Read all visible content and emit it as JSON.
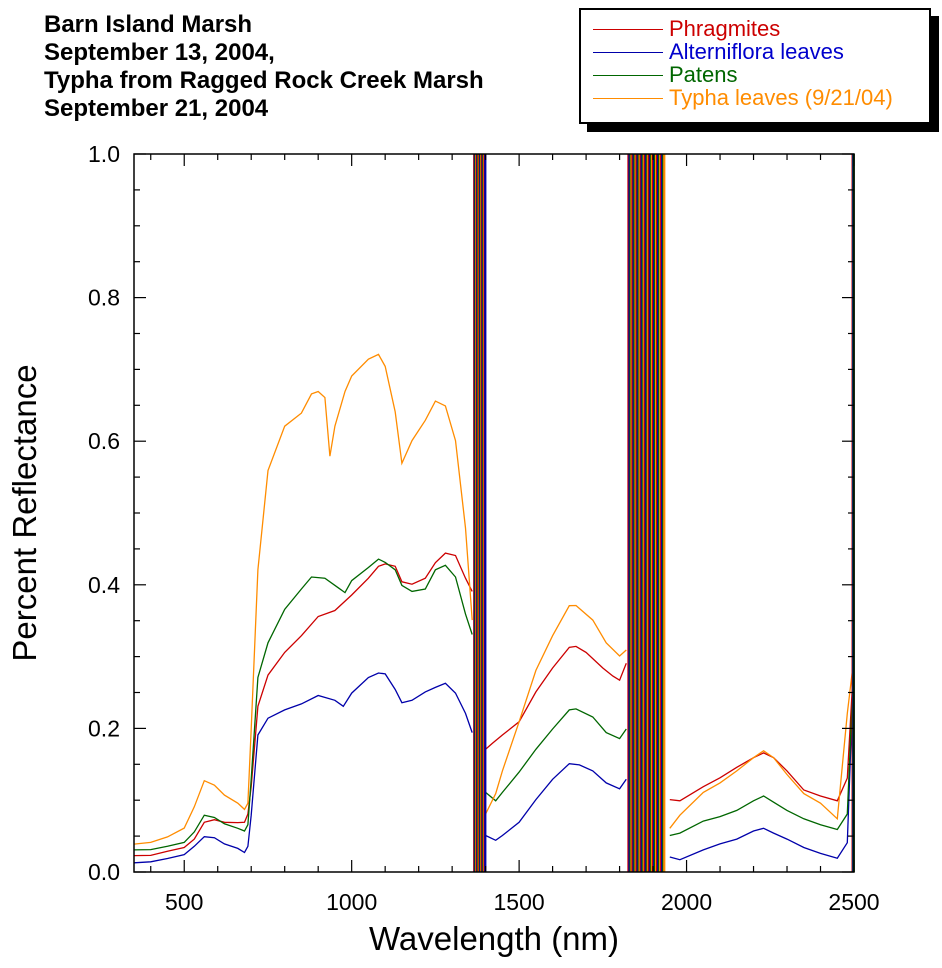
{
  "title": {
    "line1": "Barn Island Marsh",
    "line2": "September 13, 2004,",
    "line3": "Typha from Ragged Rock Creek Marsh",
    "line4": "September 21, 2004"
  },
  "colors": {
    "phragmites": "#cc0000",
    "alterniflora": "#0000aa",
    "patens": "#006600",
    "typha": "#ff8c00"
  },
  "chart_data": {
    "type": "line",
    "title": "Barn Island Marsh September 13, 2004, Typha from Ragged Rock Creek Marsh September 21, 2004",
    "xlabel": "Wavelength (nm)",
    "ylabel": "Percent Reflectance",
    "xlim": [
      350,
      2500
    ],
    "ylim": [
      0,
      1.0
    ],
    "x_ticks": [
      500,
      1000,
      1500,
      2000,
      2500
    ],
    "y_ticks": [
      "0.0",
      "0.2",
      "0.4",
      "0.6",
      "0.8",
      "1.0"
    ],
    "legend_position": "top-right",
    "grid": false,
    "series": [
      {
        "name": "Phragmites",
        "color": "#cc0000",
        "points": [
          [
            350,
            0.022
          ],
          [
            400,
            0.024
          ],
          [
            450,
            0.028
          ],
          [
            500,
            0.035
          ],
          [
            530,
            0.045
          ],
          [
            560,
            0.07
          ],
          [
            590,
            0.072
          ],
          [
            620,
            0.07
          ],
          [
            660,
            0.068
          ],
          [
            680,
            0.07
          ],
          [
            690,
            0.08
          ],
          [
            700,
            0.12
          ],
          [
            720,
            0.23
          ],
          [
            750,
            0.275
          ],
          [
            800,
            0.305
          ],
          [
            850,
            0.33
          ],
          [
            900,
            0.355
          ],
          [
            950,
            0.365
          ],
          [
            1000,
            0.385
          ],
          [
            1050,
            0.41
          ],
          [
            1080,
            0.425
          ],
          [
            1100,
            0.43
          ],
          [
            1130,
            0.425
          ],
          [
            1150,
            0.405
          ],
          [
            1180,
            0.4
          ],
          [
            1220,
            0.41
          ],
          [
            1250,
            0.43
          ],
          [
            1280,
            0.445
          ],
          [
            1310,
            0.44
          ],
          [
            1340,
            0.41
          ],
          [
            1360,
            0.39
          ]
        ],
        "points_2": [
          [
            1400,
            0.17
          ],
          [
            1420,
            0.18
          ],
          [
            1450,
            0.19
          ],
          [
            1500,
            0.21
          ],
          [
            1550,
            0.25
          ],
          [
            1600,
            0.285
          ],
          [
            1650,
            0.312
          ],
          [
            1670,
            0.315
          ],
          [
            1700,
            0.305
          ],
          [
            1750,
            0.285
          ],
          [
            1780,
            0.272
          ],
          [
            1800,
            0.268
          ],
          [
            1820,
            0.29
          ]
        ],
        "points_3": [
          [
            1950,
            0.1
          ],
          [
            1980,
            0.1
          ],
          [
            2050,
            0.118
          ],
          [
            2100,
            0.132
          ],
          [
            2150,
            0.145
          ],
          [
            2200,
            0.16
          ],
          [
            2230,
            0.165
          ],
          [
            2260,
            0.16
          ],
          [
            2300,
            0.14
          ],
          [
            2350,
            0.115
          ],
          [
            2400,
            0.105
          ],
          [
            2450,
            0.1
          ],
          [
            2480,
            0.13
          ],
          [
            2500,
            0.3
          ]
        ]
      },
      {
        "name": "Alterniflora leaves",
        "color": "#0000aa",
        "points": [
          [
            350,
            0.012
          ],
          [
            400,
            0.015
          ],
          [
            450,
            0.018
          ],
          [
            500,
            0.025
          ],
          [
            530,
            0.035
          ],
          [
            560,
            0.05
          ],
          [
            590,
            0.047
          ],
          [
            620,
            0.04
          ],
          [
            660,
            0.032
          ],
          [
            680,
            0.028
          ],
          [
            690,
            0.035
          ],
          [
            700,
            0.08
          ],
          [
            720,
            0.19
          ],
          [
            750,
            0.215
          ],
          [
            800,
            0.225
          ],
          [
            850,
            0.235
          ],
          [
            900,
            0.245
          ],
          [
            950,
            0.24
          ],
          [
            975,
            0.23
          ],
          [
            1000,
            0.25
          ],
          [
            1050,
            0.27
          ],
          [
            1080,
            0.278
          ],
          [
            1100,
            0.275
          ],
          [
            1130,
            0.255
          ],
          [
            1150,
            0.235
          ],
          [
            1180,
            0.24
          ],
          [
            1220,
            0.25
          ],
          [
            1250,
            0.258
          ],
          [
            1280,
            0.262
          ],
          [
            1310,
            0.25
          ],
          [
            1340,
            0.22
          ],
          [
            1360,
            0.195
          ]
        ],
        "points_2": [
          [
            1400,
            0.05
          ],
          [
            1430,
            0.045
          ],
          [
            1450,
            0.05
          ],
          [
            1500,
            0.07
          ],
          [
            1550,
            0.1
          ],
          [
            1600,
            0.13
          ],
          [
            1650,
            0.15
          ],
          [
            1680,
            0.15
          ],
          [
            1720,
            0.14
          ],
          [
            1760,
            0.125
          ],
          [
            1800,
            0.115
          ],
          [
            1820,
            0.13
          ]
        ],
        "points_3": [
          [
            1950,
            0.02
          ],
          [
            1980,
            0.018
          ],
          [
            2050,
            0.03
          ],
          [
            2100,
            0.04
          ],
          [
            2150,
            0.045
          ],
          [
            2200,
            0.058
          ],
          [
            2230,
            0.06
          ],
          [
            2260,
            0.055
          ],
          [
            2300,
            0.045
          ],
          [
            2350,
            0.035
          ],
          [
            2400,
            0.025
          ],
          [
            2450,
            0.02
          ],
          [
            2480,
            0.04
          ],
          [
            2500,
            0.3
          ]
        ]
      },
      {
        "name": "Patens",
        "color": "#006600",
        "points": [
          [
            350,
            0.03
          ],
          [
            400,
            0.032
          ],
          [
            450,
            0.035
          ],
          [
            500,
            0.042
          ],
          [
            530,
            0.055
          ],
          [
            560,
            0.08
          ],
          [
            590,
            0.075
          ],
          [
            620,
            0.068
          ],
          [
            660,
            0.06
          ],
          [
            680,
            0.058
          ],
          [
            690,
            0.065
          ],
          [
            700,
            0.13
          ],
          [
            720,
            0.27
          ],
          [
            750,
            0.32
          ],
          [
            800,
            0.365
          ],
          [
            850,
            0.395
          ],
          [
            880,
            0.41
          ],
          [
            920,
            0.41
          ],
          [
            960,
            0.395
          ],
          [
            980,
            0.39
          ],
          [
            1000,
            0.405
          ],
          [
            1050,
            0.425
          ],
          [
            1080,
            0.435
          ],
          [
            1100,
            0.432
          ],
          [
            1130,
            0.42
          ],
          [
            1150,
            0.4
          ],
          [
            1180,
            0.39
          ],
          [
            1220,
            0.395
          ],
          [
            1250,
            0.42
          ],
          [
            1280,
            0.428
          ],
          [
            1310,
            0.41
          ],
          [
            1340,
            0.36
          ],
          [
            1360,
            0.33
          ]
        ],
        "points_2": [
          [
            1400,
            0.11
          ],
          [
            1430,
            0.1
          ],
          [
            1450,
            0.11
          ],
          [
            1500,
            0.14
          ],
          [
            1550,
            0.17
          ],
          [
            1600,
            0.2
          ],
          [
            1650,
            0.225
          ],
          [
            1670,
            0.228
          ],
          [
            1720,
            0.215
          ],
          [
            1760,
            0.195
          ],
          [
            1800,
            0.185
          ],
          [
            1820,
            0.2
          ]
        ],
        "points_3": [
          [
            1950,
            0.05
          ],
          [
            1980,
            0.055
          ],
          [
            2050,
            0.07
          ],
          [
            2100,
            0.078
          ],
          [
            2150,
            0.085
          ],
          [
            2200,
            0.1
          ],
          [
            2230,
            0.105
          ],
          [
            2260,
            0.098
          ],
          [
            2300,
            0.085
          ],
          [
            2350,
            0.075
          ],
          [
            2400,
            0.065
          ],
          [
            2450,
            0.06
          ],
          [
            2480,
            0.08
          ],
          [
            2500,
            0.3
          ]
        ]
      },
      {
        "name": "Typha leaves (9/21/04)",
        "color": "#ff8c00",
        "points": [
          [
            350,
            0.038
          ],
          [
            400,
            0.042
          ],
          [
            450,
            0.048
          ],
          [
            500,
            0.062
          ],
          [
            530,
            0.09
          ],
          [
            560,
            0.128
          ],
          [
            590,
            0.12
          ],
          [
            620,
            0.108
          ],
          [
            660,
            0.095
          ],
          [
            680,
            0.088
          ],
          [
            690,
            0.095
          ],
          [
            700,
            0.2
          ],
          [
            720,
            0.42
          ],
          [
            750,
            0.56
          ],
          [
            800,
            0.62
          ],
          [
            850,
            0.64
          ],
          [
            880,
            0.665
          ],
          [
            900,
            0.67
          ],
          [
            920,
            0.66
          ],
          [
            935,
            0.58
          ],
          [
            950,
            0.62
          ],
          [
            980,
            0.67
          ],
          [
            1000,
            0.69
          ],
          [
            1050,
            0.715
          ],
          [
            1080,
            0.72
          ],
          [
            1100,
            0.705
          ],
          [
            1130,
            0.64
          ],
          [
            1150,
            0.57
          ],
          [
            1180,
            0.6
          ],
          [
            1220,
            0.63
          ],
          [
            1250,
            0.655
          ],
          [
            1280,
            0.65
          ],
          [
            1310,
            0.6
          ],
          [
            1340,
            0.48
          ],
          [
            1360,
            0.35
          ]
        ],
        "points_2": [
          [
            1400,
            0.08
          ],
          [
            1430,
            0.11
          ],
          [
            1450,
            0.14
          ],
          [
            1500,
            0.21
          ],
          [
            1550,
            0.28
          ],
          [
            1600,
            0.33
          ],
          [
            1650,
            0.37
          ],
          [
            1670,
            0.372
          ],
          [
            1720,
            0.35
          ],
          [
            1760,
            0.32
          ],
          [
            1800,
            0.3
          ],
          [
            1820,
            0.31
          ]
        ],
        "points_3": [
          [
            1950,
            0.06
          ],
          [
            1980,
            0.08
          ],
          [
            2050,
            0.11
          ],
          [
            2100,
            0.125
          ],
          [
            2150,
            0.14
          ],
          [
            2200,
            0.16
          ],
          [
            2230,
            0.168
          ],
          [
            2260,
            0.16
          ],
          [
            2300,
            0.135
          ],
          [
            2350,
            0.11
          ],
          [
            2400,
            0.095
          ],
          [
            2450,
            0.075
          ],
          [
            2480,
            0.22
          ],
          [
            2500,
            0.3
          ]
        ]
      }
    ]
  }
}
